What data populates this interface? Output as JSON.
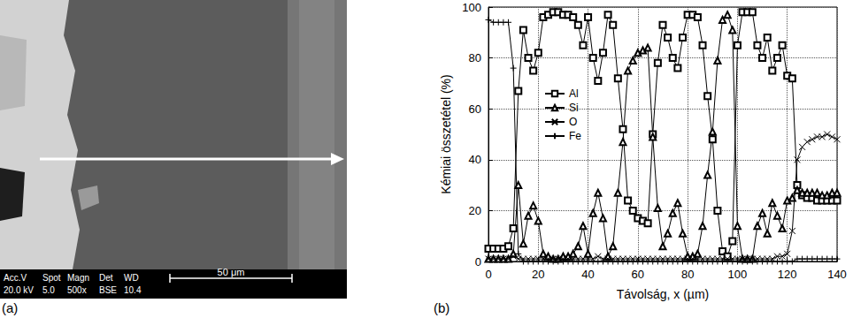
{
  "micrograph": {
    "panel_label": "(a)",
    "info_header": [
      "Acc.V",
      "Spot",
      "Magn",
      "Det",
      "WD"
    ],
    "info_values": [
      "20.0 kV",
      "5.0",
      "500x",
      "BSE",
      "10.4"
    ],
    "scale_bar": "50 μm"
  },
  "chart_data": {
    "type": "line",
    "panel_label": "(b)",
    "x_label": "Távolság, x (µm)",
    "y_label": "Kémiai összetétel (%)",
    "x": [
      0,
      2,
      4,
      6,
      8,
      10,
      12,
      14,
      16,
      18,
      20,
      22,
      24,
      26,
      28,
      30,
      32,
      34,
      36,
      38,
      40,
      42,
      44,
      46,
      48,
      50,
      52,
      54,
      56,
      58,
      60,
      62,
      64,
      66,
      68,
      70,
      72,
      74,
      76,
      78,
      80,
      82,
      84,
      86,
      88,
      90,
      92,
      94,
      96,
      98,
      100,
      102,
      104,
      106,
      108,
      110,
      112,
      114,
      116,
      118,
      120,
      122,
      124,
      126,
      128,
      130,
      132,
      134,
      136,
      138,
      140
    ],
    "series": [
      {
        "name": "Al",
        "color": "#000000",
        "marker": "square",
        "values": [
          5,
          5,
          5,
          5,
          6,
          13,
          67,
          91,
          80,
          75,
          82,
          96,
          97,
          98,
          98,
          97,
          97,
          96,
          93,
          85,
          96,
          80,
          71,
          82,
          97,
          93,
          72,
          52,
          24,
          20,
          17,
          16,
          15,
          50,
          78,
          93,
          88,
          80,
          76,
          88,
          97,
          97,
          96,
          85,
          65,
          48,
          20,
          4,
          2,
          8,
          85,
          98,
          98,
          98,
          85,
          80,
          88,
          75,
          80,
          85,
          73,
          72,
          30,
          26,
          25,
          25,
          24,
          24,
          24,
          24,
          24
        ]
      },
      {
        "name": "Si",
        "color": "#000000",
        "marker": "triangle",
        "values": [
          1,
          1,
          1,
          1,
          1,
          3,
          30,
          7,
          18,
          22,
          16,
          3,
          2,
          1,
          1,
          2,
          2,
          3,
          6,
          14,
          3,
          19,
          27,
          17,
          2,
          6,
          27,
          47,
          75,
          79,
          82,
          83,
          84,
          49,
          21,
          6,
          11,
          19,
          23,
          11,
          2,
          2,
          3,
          14,
          34,
          51,
          79,
          95,
          97,
          91,
          14,
          1,
          1,
          1,
          14,
          19,
          11,
          23,
          18,
          13,
          24,
          25,
          28,
          27,
          27,
          27,
          27,
          26,
          26,
          27,
          27
        ]
      },
      {
        "name": "O",
        "color": "#000000",
        "marker": "x",
        "values": [
          1,
          1,
          1,
          1,
          1,
          2,
          1,
          1,
          1,
          1,
          1,
          1,
          1,
          1,
          1,
          1,
          1,
          1,
          1,
          1,
          1,
          1,
          2,
          1,
          1,
          1,
          1,
          1,
          1,
          1,
          1,
          1,
          1,
          1,
          1,
          1,
          1,
          1,
          1,
          1,
          1,
          1,
          1,
          1,
          1,
          1,
          1,
          1,
          1,
          1,
          1,
          1,
          1,
          1,
          1,
          1,
          1,
          1,
          2,
          2,
          3,
          12,
          40,
          45,
          47,
          48,
          49,
          49,
          50,
          49,
          48
        ]
      },
      {
        "name": "Fe",
        "color": "#000000",
        "marker": "plus",
        "values": [
          95,
          94,
          94,
          94,
          94,
          76,
          3,
          0,
          0,
          0,
          0,
          0,
          0,
          0,
          0,
          0,
          0,
          0,
          0,
          0,
          0,
          0,
          0,
          0,
          0,
          0,
          0,
          0,
          0,
          0,
          0,
          0,
          0,
          0,
          0,
          0,
          0,
          0,
          0,
          0,
          0,
          0,
          0,
          0,
          0,
          0,
          0,
          0,
          0,
          0,
          0,
          0,
          0,
          0,
          0,
          0,
          0,
          0,
          0,
          0,
          0,
          0,
          1,
          1,
          1,
          1,
          1,
          1,
          1,
          1,
          1
        ]
      }
    ],
    "xlim": [
      0,
      140
    ],
    "xticks": [
      0,
      20,
      40,
      60,
      80,
      100,
      120,
      140
    ],
    "ylim": [
      0,
      100
    ],
    "yticks": [
      0,
      20,
      40,
      60,
      80,
      100
    ],
    "grid": true,
    "legend": "upper left"
  }
}
